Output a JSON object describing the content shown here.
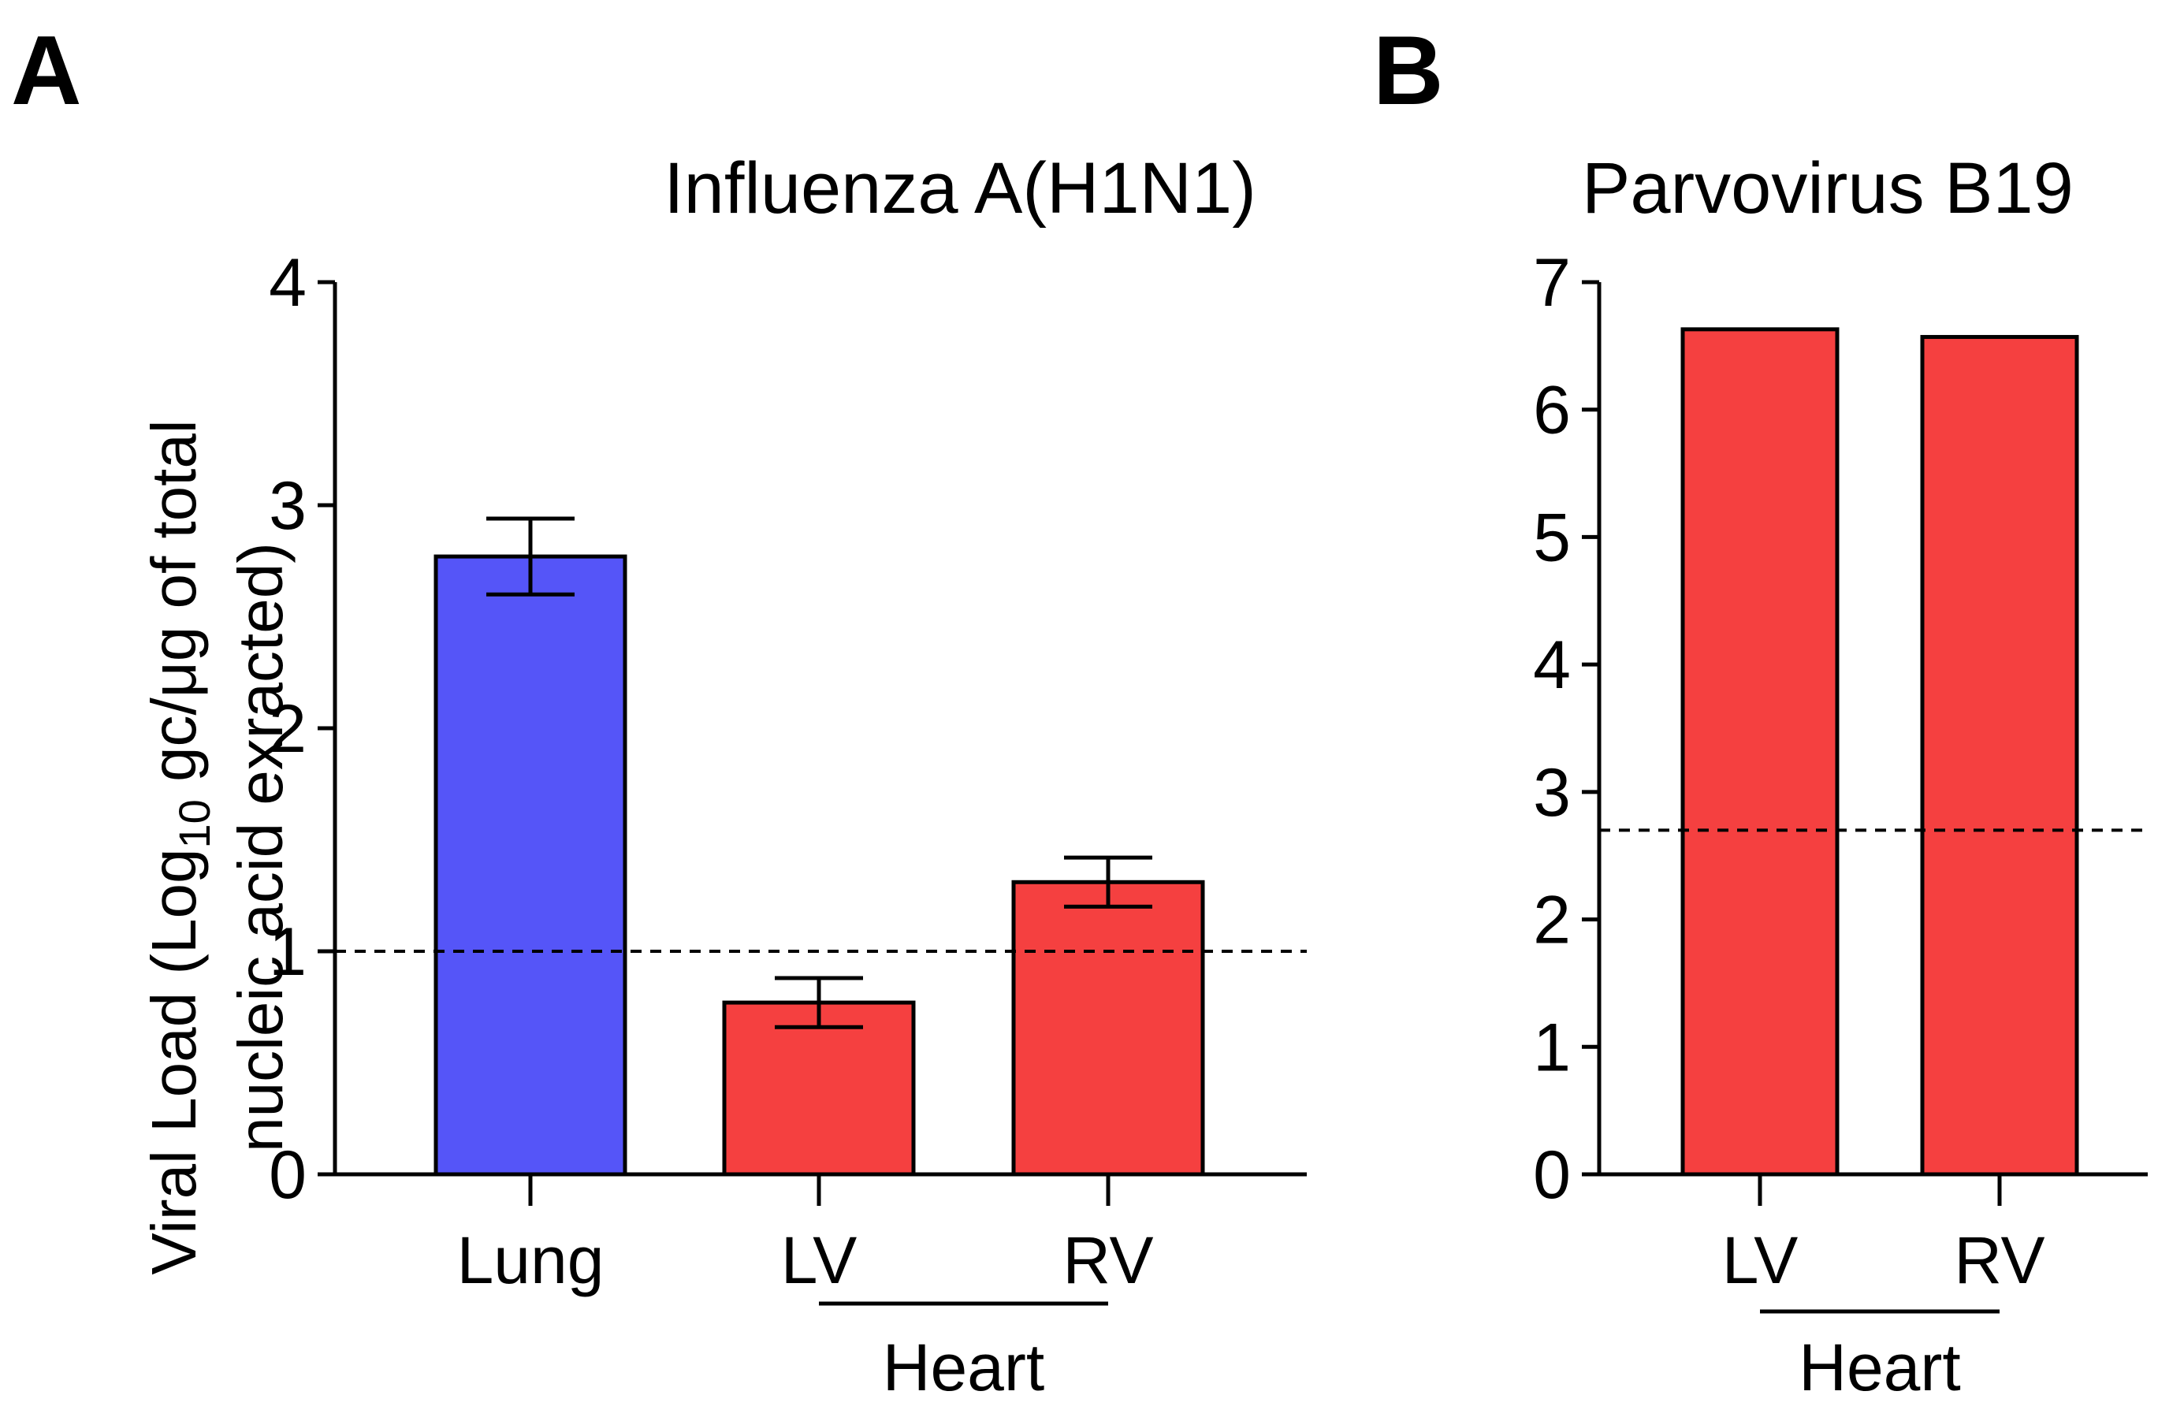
{
  "chart_data": [
    {
      "panel": "A",
      "type": "bar",
      "title": "Influenza A(H1N1)",
      "ylabel_line1_prefix": "Viral Load (Log",
      "ylabel_subscript": "10",
      "ylabel_line1_suffix": " gc/μg of total",
      "ylabel_line2": "nucleic acid exracted)",
      "ylim": [
        0,
        4
      ],
      "yticks": [
        0,
        1,
        2,
        3,
        4
      ],
      "categories": [
        "Lung",
        "LV",
        "RV"
      ],
      "values": [
        2.77,
        0.77,
        1.31
      ],
      "errors": [
        0.17,
        0.11,
        0.11
      ],
      "colors": [
        "#5555F8",
        "#F54040",
        "#F54040"
      ],
      "detection_limit": 1.0,
      "group_label": "Heart",
      "group_members": [
        "LV",
        "RV"
      ]
    },
    {
      "panel": "B",
      "type": "bar",
      "title": "Parvovirus  B19",
      "ylim": [
        0,
        7
      ],
      "yticks": [
        0,
        1,
        2,
        3,
        4,
        5,
        6,
        7
      ],
      "categories": [
        "LV",
        "RV"
      ],
      "values": [
        6.63,
        6.57
      ],
      "colors": [
        "#F54040",
        "#F54040"
      ],
      "detection_limit": 2.7,
      "group_label": "Heart",
      "group_members": [
        "LV",
        "RV"
      ]
    }
  ]
}
